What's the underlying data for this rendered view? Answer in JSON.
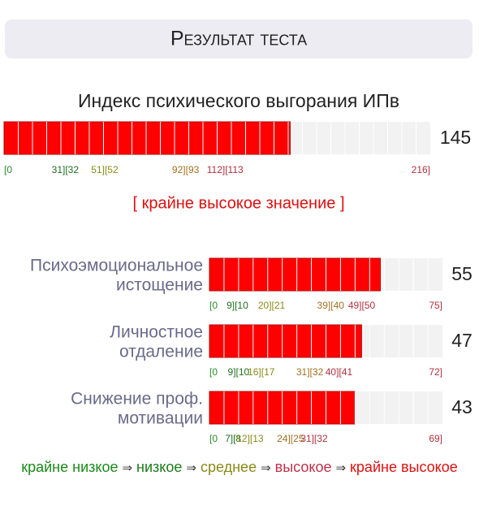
{
  "header": {
    "title": "Результат теста"
  },
  "main": {
    "title": "Индекс психического выгорания ИПв",
    "value": 145,
    "xlim": [
      0,
      216
    ],
    "color": "#ff0000",
    "ticks": [
      {
        "value": 0,
        "label": "[0",
        "color": "#2a8a2a"
      },
      {
        "value": 31,
        "label": "31][32",
        "color": "#1f6f1f"
      },
      {
        "value": 51,
        "label": "51][52",
        "color": "#8a8a1a"
      },
      {
        "value": 92,
        "label": "92][93",
        "color": "#a07020"
      },
      {
        "value": 112,
        "label": "112][113",
        "color": "#b03040"
      },
      {
        "value": 216,
        "label": "216]",
        "color": "#b03040"
      }
    ],
    "verdict": "[ крайне высокое значение ]"
  },
  "subscales": [
    {
      "label": [
        "Психоэмоциональное",
        "истощение"
      ],
      "value": 55,
      "xlim": [
        0,
        75
      ],
      "color": "#ff0000",
      "ticks": [
        {
          "value": 0,
          "label": "[0",
          "color": "#2a8a2a"
        },
        {
          "value": 9,
          "label": "9][10",
          "color": "#1f6f1f"
        },
        {
          "value": 20,
          "label": "20][21",
          "color": "#8a8a1a"
        },
        {
          "value": 39,
          "label": "39][40",
          "color": "#a07020"
        },
        {
          "value": 49,
          "label": "49][50",
          "color": "#b03040"
        },
        {
          "value": 75,
          "label": "75]",
          "color": "#b03040"
        }
      ]
    },
    {
      "label": [
        "Личностное",
        "отдаление"
      ],
      "value": 47,
      "xlim": [
        0,
        72
      ],
      "color": "#ff0000",
      "ticks": [
        {
          "value": 0,
          "label": "[0",
          "color": "#2a8a2a"
        },
        {
          "value": 9,
          "label": "9][10",
          "color": "#1f6f1f"
        },
        {
          "value": 16,
          "label": "16][17",
          "color": "#8a8a1a"
        },
        {
          "value": 31,
          "label": "31][32",
          "color": "#a07020"
        },
        {
          "value": 40,
          "label": "40][41",
          "color": "#b03040"
        },
        {
          "value": 72,
          "label": "72]",
          "color": "#b03040"
        }
      ]
    },
    {
      "label": [
        "Снижение проф.",
        "мотивации"
      ],
      "value": 43,
      "xlim": [
        0,
        69
      ],
      "color": "#ff0000",
      "ticks": [
        {
          "value": 0,
          "label": "[0",
          "color": "#2a8a2a"
        },
        {
          "value": 7,
          "label": "7][8",
          "color": "#1f6f1f"
        },
        {
          "value": 12,
          "label": "12][13",
          "color": "#8a8a1a"
        },
        {
          "value": 24,
          "label": "24][25",
          "color": "#a07020"
        },
        {
          "value": 31,
          "label": "31][32",
          "color": "#b03040"
        },
        {
          "value": 69,
          "label": "69]",
          "color": "#b03040"
        }
      ]
    }
  ],
  "legend": {
    "separator": "⇒",
    "items": [
      {
        "text": "крайне низкое",
        "color": "#1a8a1a"
      },
      {
        "text": "низкое",
        "color": "#1a7a1a"
      },
      {
        "text": "среднее",
        "color": "#8a8a1a"
      },
      {
        "text": "высокое",
        "color": "#c0304a"
      },
      {
        "text": "крайне высокое",
        "color": "#e01010"
      }
    ]
  }
}
